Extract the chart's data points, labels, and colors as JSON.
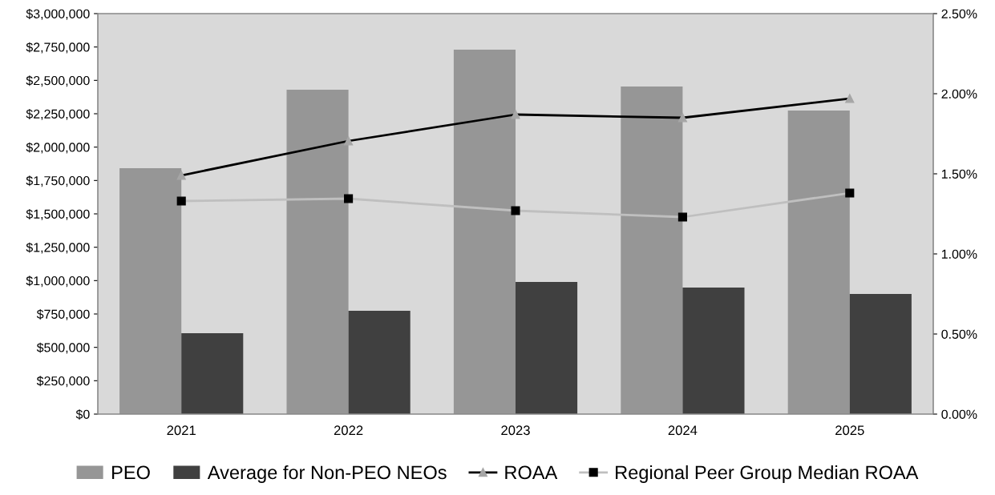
{
  "chart_data": {
    "type": "bar",
    "categories": [
      "2021",
      "2022",
      "2023",
      "2024",
      "2025"
    ],
    "series": [
      {
        "name": "PEO",
        "color": "#969696",
        "values": [
          1842000,
          2430000,
          2730000,
          2454000,
          2274000
        ]
      },
      {
        "name": "Average for Non-PEO NEOs",
        "color": "#404040",
        "values": [
          606000,
          774000,
          990000,
          948000,
          900000
        ]
      },
      {
        "name": "ROAA",
        "type": "line",
        "axis": "y2",
        "color": "#000000",
        "marker": "triangle",
        "values": [
          1.49,
          1.705,
          1.87,
          1.85,
          1.97
        ]
      },
      {
        "name": "Regional Peer Group Median ROAA",
        "type": "line",
        "axis": "y2",
        "color": "#bfbfbf",
        "marker": "square",
        "values": [
          1.33,
          1.345,
          1.27,
          1.23,
          1.38
        ]
      }
    ],
    "ylim": [
      0,
      3000000
    ],
    "yticks": [
      {
        "value": 0,
        "label": "$0"
      },
      {
        "value": 250000,
        "label": "$250,000"
      },
      {
        "value": 500000,
        "label": "$500,000"
      },
      {
        "value": 750000,
        "label": "$750,000"
      },
      {
        "value": 1000000,
        "label": "$1,000,000"
      },
      {
        "value": 1250000,
        "label": "$1,250,000"
      },
      {
        "value": 1500000,
        "label": "$1,500,000"
      },
      {
        "value": 1750000,
        "label": "$1,750,000"
      },
      {
        "value": 2000000,
        "label": "$2,000,000"
      },
      {
        "value": 2250000,
        "label": "$2,250,000"
      },
      {
        "value": 2500000,
        "label": "$2,500,000"
      },
      {
        "value": 2750000,
        "label": "$2,750,000"
      },
      {
        "value": 3000000,
        "label": "$3,000,000"
      }
    ],
    "y2lim": [
      0,
      2.5
    ],
    "y2ticks": [
      {
        "value": 0,
        "label": "0.00%"
      },
      {
        "value": 0.5,
        "label": "0.50%"
      },
      {
        "value": 1,
        "label": "1.00%"
      },
      {
        "value": 1.5,
        "label": "1.50%"
      },
      {
        "value": 2,
        "label": "2.00%"
      },
      {
        "value": 2.5,
        "label": "2.50%"
      }
    ],
    "grid": false,
    "legend": "bottom",
    "line_style": "solid"
  }
}
